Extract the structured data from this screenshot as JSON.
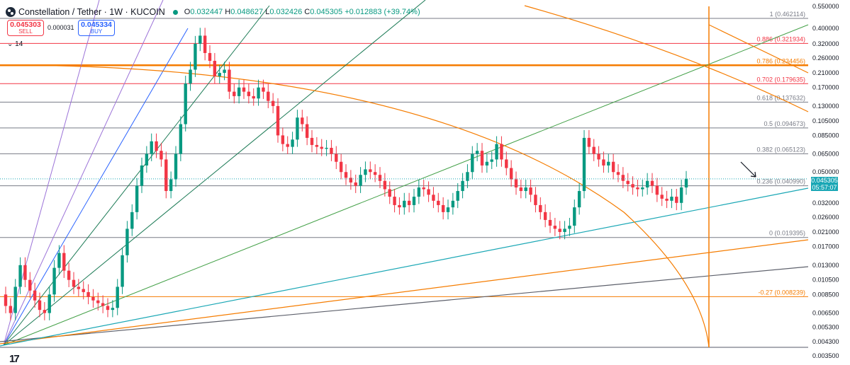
{
  "header": {
    "symbol_title": "Constellation / Tether · 1W · KUCOIN",
    "open_label": "O",
    "open": "0.032447",
    "high_label": "H",
    "high": "0.048627",
    "low_label": "L",
    "low": "0.032426",
    "close_label": "C",
    "close": "0.045305",
    "change": "+0.012883 (+39.74%)"
  },
  "trade": {
    "sell_price": "0.045303",
    "sell_label": "SELL",
    "spread": "0.000031",
    "buy_price": "0.045334",
    "buy_label": "BUY"
  },
  "indicator_label": "14",
  "price_tag": {
    "price": "0.045305",
    "countdown": "05:57:07"
  },
  "colors": {
    "up": "#089981",
    "down": "#f23645",
    "orange": "#f57c00",
    "green_line": "#43a047",
    "cyan_line": "#1aa7b5",
    "blue_fan": "#2962ff",
    "purple_fan": "#9c73d8",
    "dark_fan": "#1b7a55",
    "grey_line": "#5d606b",
    "red_fib": "#e05d6f"
  },
  "chart_data": {
    "type": "candlestick",
    "y_scale": "log",
    "ylim": [
      0.0035,
      0.55
    ],
    "y_ticks": [
      "0.550000",
      "0.400000",
      "0.320000",
      "0.260000",
      "0.210000",
      "0.170000",
      "0.130000",
      "0.105000",
      "0.085000",
      "0.065000",
      "0.050000",
      "0.032000",
      "0.026000",
      "0.021000",
      "0.017000",
      "0.013000",
      "0.010500",
      "0.008500",
      "0.006500",
      "0.005300",
      "0.004300",
      "0.003500"
    ],
    "fib_levels": [
      {
        "label": "1 (0.462114)",
        "value": 0.462114,
        "color": "#787b86"
      },
      {
        "label": "0.886 (0.321934)",
        "value": 0.321934,
        "color": "#f23645"
      },
      {
        "label": "0.786 (0.234456)",
        "value": 0.234456,
        "color": "#f57c00"
      },
      {
        "label": "0.702 (0.179635)",
        "value": 0.179635,
        "color": "#f23645"
      },
      {
        "label": "0.618 (0.137632)",
        "value": 0.137632,
        "color": "#787b86"
      },
      {
        "label": "0.5 (0.094673)",
        "value": 0.094673,
        "color": "#787b86"
      },
      {
        "label": "0.382 (0.065123)",
        "value": 0.065123,
        "color": "#787b86"
      },
      {
        "label": "0.236 (0.040990)",
        "value": 0.04099,
        "color": "#787b86"
      },
      {
        "label": "0 (0.019395)",
        "value": 0.019395,
        "color": "#787b86"
      },
      {
        "label": "-0.27 (0.008239)",
        "value": 0.008239,
        "color": "#f57c00"
      }
    ],
    "price_path": [
      0.0085,
      0.0072,
      0.0065,
      0.0095,
      0.013,
      0.0105,
      0.009,
      0.0078,
      0.0068,
      0.0065,
      0.0085,
      0.0125,
      0.0155,
      0.012,
      0.0105,
      0.0095,
      0.0092,
      0.0088,
      0.0082,
      0.0078,
      0.0075,
      0.0072,
      0.0068,
      0.007,
      0.0095,
      0.015,
      0.022,
      0.028,
      0.041,
      0.055,
      0.065,
      0.078,
      0.068,
      0.06,
      0.038,
      0.045,
      0.065,
      0.1,
      0.18,
      0.22,
      0.32,
      0.36,
      0.28,
      0.25,
      0.2,
      0.21,
      0.22,
      0.16,
      0.15,
      0.17,
      0.16,
      0.15,
      0.145,
      0.17,
      0.16,
      0.14,
      0.13,
      0.085,
      0.075,
      0.072,
      0.08,
      0.11,
      0.1,
      0.082,
      0.074,
      0.072,
      0.07,
      0.071,
      0.065,
      0.058,
      0.05,
      0.046,
      0.043,
      0.041,
      0.048,
      0.052,
      0.05,
      0.048,
      0.044,
      0.039,
      0.035,
      0.031,
      0.03,
      0.033,
      0.031,
      0.035,
      0.04,
      0.039,
      0.036,
      0.033,
      0.031,
      0.028,
      0.03,
      0.033,
      0.038,
      0.044,
      0.05,
      0.065,
      0.068,
      0.055,
      0.058,
      0.06,
      0.075,
      0.06,
      0.053,
      0.045,
      0.04,
      0.038,
      0.04,
      0.036,
      0.031,
      0.028,
      0.025,
      0.023,
      0.022,
      0.021,
      0.022,
      0.023,
      0.03,
      0.038,
      0.082,
      0.072,
      0.065,
      0.06,
      0.055,
      0.058,
      0.05,
      0.048,
      0.044,
      0.042,
      0.04,
      0.039,
      0.04,
      0.044,
      0.041,
      0.036,
      0.034,
      0.033,
      0.035,
      0.032,
      0.04,
      0.045305
    ],
    "lines": [
      {
        "name": "dark-trendline",
        "color": "#5d606b"
      },
      {
        "name": "orange-trendline",
        "color": "#f57c00"
      },
      {
        "name": "cyan-trendline",
        "color": "#1aa7b5"
      },
      {
        "name": "green-fan-line",
        "color": "#43a047"
      },
      {
        "name": "orange-arc",
        "color": "#f57c00"
      },
      {
        "name": "vertical-time-line",
        "color": "#f57c00"
      }
    ]
  }
}
